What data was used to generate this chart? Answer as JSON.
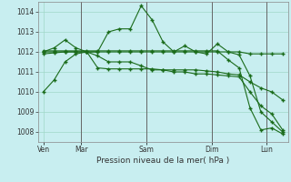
{
  "bg_color": "#c8eef0",
  "grid_color": "#a0d8c8",
  "line_color": "#1a6b1a",
  "title": "Pression niveau de la mer( hPa )",
  "ylim": [
    1007.5,
    1014.5
  ],
  "yticks": [
    1008,
    1009,
    1010,
    1011,
    1012,
    1013,
    1014
  ],
  "series": [
    [
      1010.0,
      1010.6,
      1011.5,
      1011.9,
      1012.0,
      1012.0,
      1013.0,
      1013.15,
      1013.15,
      1014.3,
      1013.6,
      1012.5,
      1012.0,
      1012.3,
      1012.0,
      1011.9,
      1012.4,
      1012.0,
      1011.85,
      1010.8,
      1009.0,
      1008.5,
      1008.0
    ],
    [
      1012.0,
      1012.0,
      1012.0,
      1012.0,
      1012.0,
      1012.0,
      1012.0,
      1012.0,
      1012.0,
      1012.0,
      1012.0,
      1012.0,
      1012.0,
      1012.0,
      1012.0,
      1012.0,
      1012.0,
      1012.0,
      1012.0,
      1011.9,
      1011.9,
      1011.9,
      1011.9
    ],
    [
      1011.9,
      1011.95,
      1012.0,
      1012.0,
      1012.0,
      1011.8,
      1011.5,
      1011.5,
      1011.5,
      1011.3,
      1011.1,
      1011.1,
      1011.1,
      1011.1,
      1011.1,
      1011.05,
      1011.0,
      1010.9,
      1010.85,
      1010.5,
      1010.2,
      1010.0,
      1009.6
    ],
    [
      1012.0,
      1012.2,
      1012.6,
      1012.2,
      1012.0,
      1011.2,
      1011.15,
      1011.15,
      1011.15,
      1011.15,
      1011.15,
      1011.1,
      1011.0,
      1011.0,
      1010.9,
      1010.9,
      1010.85,
      1010.8,
      1010.75,
      1010.0,
      1009.3,
      1008.9,
      1008.1
    ],
    [
      1012.05,
      1012.05,
      1012.05,
      1012.05,
      1012.05,
      1012.05,
      1012.05,
      1012.05,
      1012.05,
      1012.05,
      1012.05,
      1012.05,
      1012.05,
      1012.05,
      1012.05,
      1012.05,
      1012.05,
      1011.6,
      1011.2,
      1009.2,
      1008.1,
      1008.2,
      1007.9
    ]
  ],
  "vline_x": [
    3.5,
    9.5,
    15.5,
    20.5
  ],
  "xtick_pos": [
    0,
    3.5,
    9.5,
    15.5,
    20.5
  ],
  "xtick_labels": [
    "Ven",
    "Mar",
    "Sam",
    "Dim",
    "Lun"
  ],
  "figsize": [
    3.2,
    2.0
  ],
  "dpi": 100
}
